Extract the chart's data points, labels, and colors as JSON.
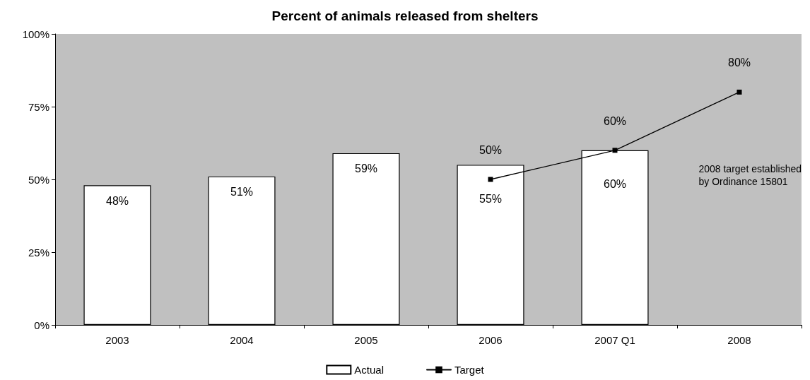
{
  "chart_data": {
    "type": "bar",
    "title": "Percent of animals released from shelters",
    "categories": [
      "2003",
      "2004",
      "2005",
      "2006",
      "2007 Q1",
      "2008"
    ],
    "series": [
      {
        "name": "Actual",
        "color": "#ffffff",
        "values": [
          48,
          51,
          59,
          55,
          60,
          null
        ],
        "value_labels": [
          "48%",
          "51%",
          "59%",
          "55%",
          "60%",
          null
        ]
      },
      {
        "name": "Target",
        "type": "line",
        "color": "#000000",
        "marker": "square",
        "line_style": "solid",
        "values": [
          null,
          null,
          null,
          50,
          60,
          80
        ],
        "value_labels": [
          null,
          null,
          null,
          "50%",
          "60%",
          "80%"
        ]
      }
    ],
    "ylim": [
      0,
      100
    ],
    "yticks": [
      {
        "value": 0,
        "label": "0%"
      },
      {
        "value": 25,
        "label": "25%"
      },
      {
        "value": 50,
        "label": "50%"
      },
      {
        "value": 75,
        "label": "75%"
      },
      {
        "value": 100,
        "label": "100%"
      }
    ],
    "grid": false,
    "legend": "bottom",
    "annotations": [
      "2008 target established\nby Ordinance 15801"
    ]
  }
}
